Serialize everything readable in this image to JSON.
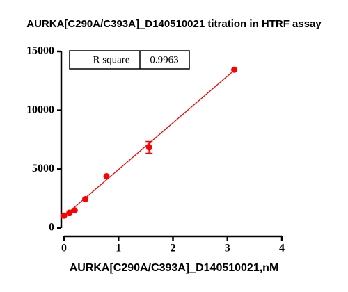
{
  "chart_data": {
    "type": "scatter",
    "title": "AURKA[C290A/C393A]_D140510021 titration in  HTRF assay",
    "x_label": "AURKA[C290A/C393A]_D140510021,nM",
    "x": [
      0,
      0.098,
      0.195,
      0.39,
      0.78,
      1.5625,
      3.125
    ],
    "values": [
      1050,
      1300,
      1500,
      2450,
      4400,
      6850,
      13450
    ],
    "errors": [
      null,
      null,
      null,
      null,
      null,
      500,
      null
    ],
    "color": "#ff0000",
    "fit_line": {
      "x": [
        0,
        3.125
      ],
      "values": [
        1000,
        13400
      ]
    },
    "xlim": [
      0,
      4
    ],
    "xticks": [
      0,
      1,
      2,
      3,
      4
    ],
    "ylim": [
      0,
      15000
    ],
    "yticks": [
      0,
      5000,
      10000,
      15000
    ],
    "r_square_label": "R square",
    "r_square": 0.9963
  }
}
